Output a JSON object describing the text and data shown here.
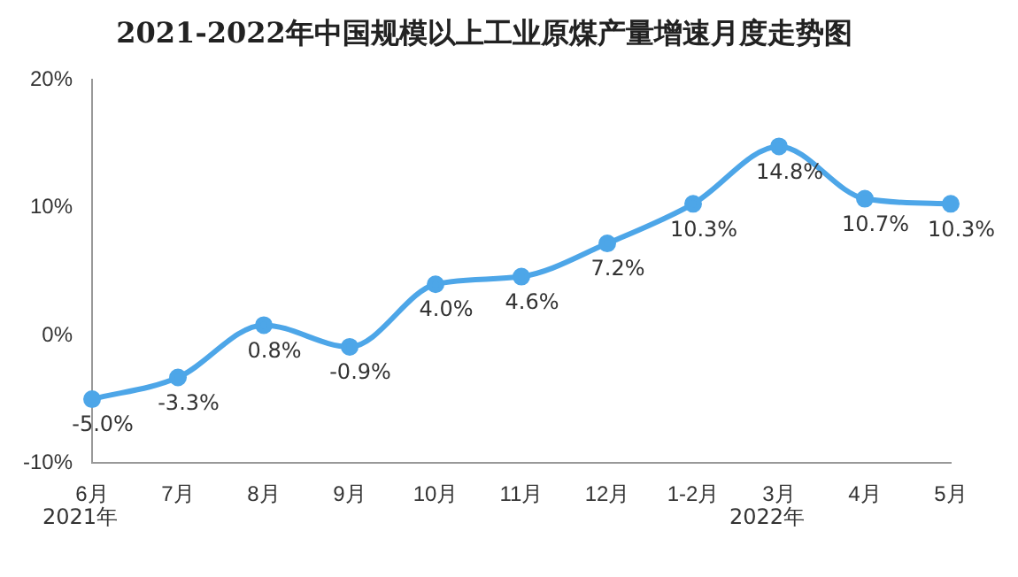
{
  "chart_data": {
    "type": "line",
    "title": "2021-2022年中国规模以上工业原煤产量增速月度走势图",
    "categories": [
      "6月",
      "7月",
      "8月",
      "9月",
      "10月",
      "11月",
      "12月",
      "1-2月",
      "3月",
      "4月",
      "5月"
    ],
    "series": [
      {
        "color": "#4da6e8",
        "values": [
          -5.0,
          -3.3,
          0.8,
          -0.9,
          4.0,
          4.6,
          7.2,
          10.3,
          14.8,
          10.7,
          10.3
        ]
      }
    ],
    "ylim": [
      -10,
      20
    ],
    "yticks": [
      {
        "value": -10,
        "label": "-10%"
      },
      {
        "value": 0,
        "label": "0%"
      },
      {
        "value": 10,
        "label": "10%"
      },
      {
        "value": 20,
        "label": "20%"
      }
    ],
    "value_labels": [
      "-5.0%",
      "-3.3%",
      "0.8%",
      "-0.9%",
      "4.0%",
      "4.6%",
      "7.2%",
      "10.3%",
      "14.8%",
      "10.7%",
      "10.3%"
    ],
    "annotations": [
      "2021年",
      "2022年"
    ],
    "grid": false,
    "legend": false,
    "marker": "circle",
    "line_style": "solid"
  }
}
